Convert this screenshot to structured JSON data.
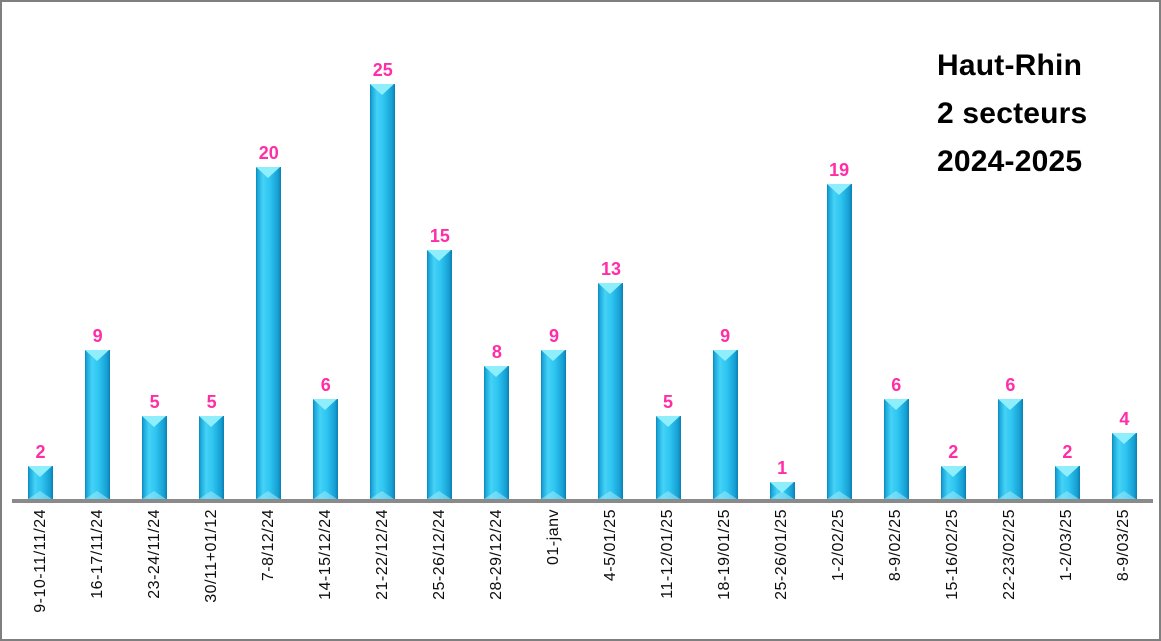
{
  "title": {
    "lines": [
      "Haut-Rhin",
      "2 secteurs",
      "2024-2025"
    ]
  },
  "colors": {
    "bar_main": "#2ec5f1",
    "bar_light": "#45d2f6",
    "bar_dark": "#0c85b9",
    "bar_glint": "#8feefc",
    "value_label": "#ff2da6",
    "axis": "#8a8a8a",
    "text": "#000000"
  },
  "chart_data": {
    "type": "bar",
    "title": "Haut-Rhin 2 secteurs 2024-2025",
    "xlabel": "",
    "ylabel": "",
    "ylim": [
      0,
      26
    ],
    "grid": false,
    "legend": false,
    "bar_color": "#2ec5f1",
    "value_label_color": "#ff2da6",
    "categories": [
      "9-10-11/11/24",
      "16-17/11/24",
      "23-24/11/24",
      "30/11+01/12",
      "7-8/12/24",
      "14-15/12/24",
      "21-22/12/24",
      "25-26/12/24",
      "28-29/12/24",
      "01-janv",
      "4-5/01/25",
      "11-12/01/25",
      "18-19/01/25",
      "25-26/01/25",
      "1-2/02/25",
      "8-9/02/25",
      "15-16/02/25",
      "22-23/02/25",
      "1-2/03/25",
      "8-9/03/25"
    ],
    "values": [
      2,
      9,
      5,
      5,
      20,
      6,
      25,
      15,
      8,
      9,
      13,
      5,
      9,
      1,
      19,
      6,
      2,
      6,
      2,
      4
    ]
  }
}
